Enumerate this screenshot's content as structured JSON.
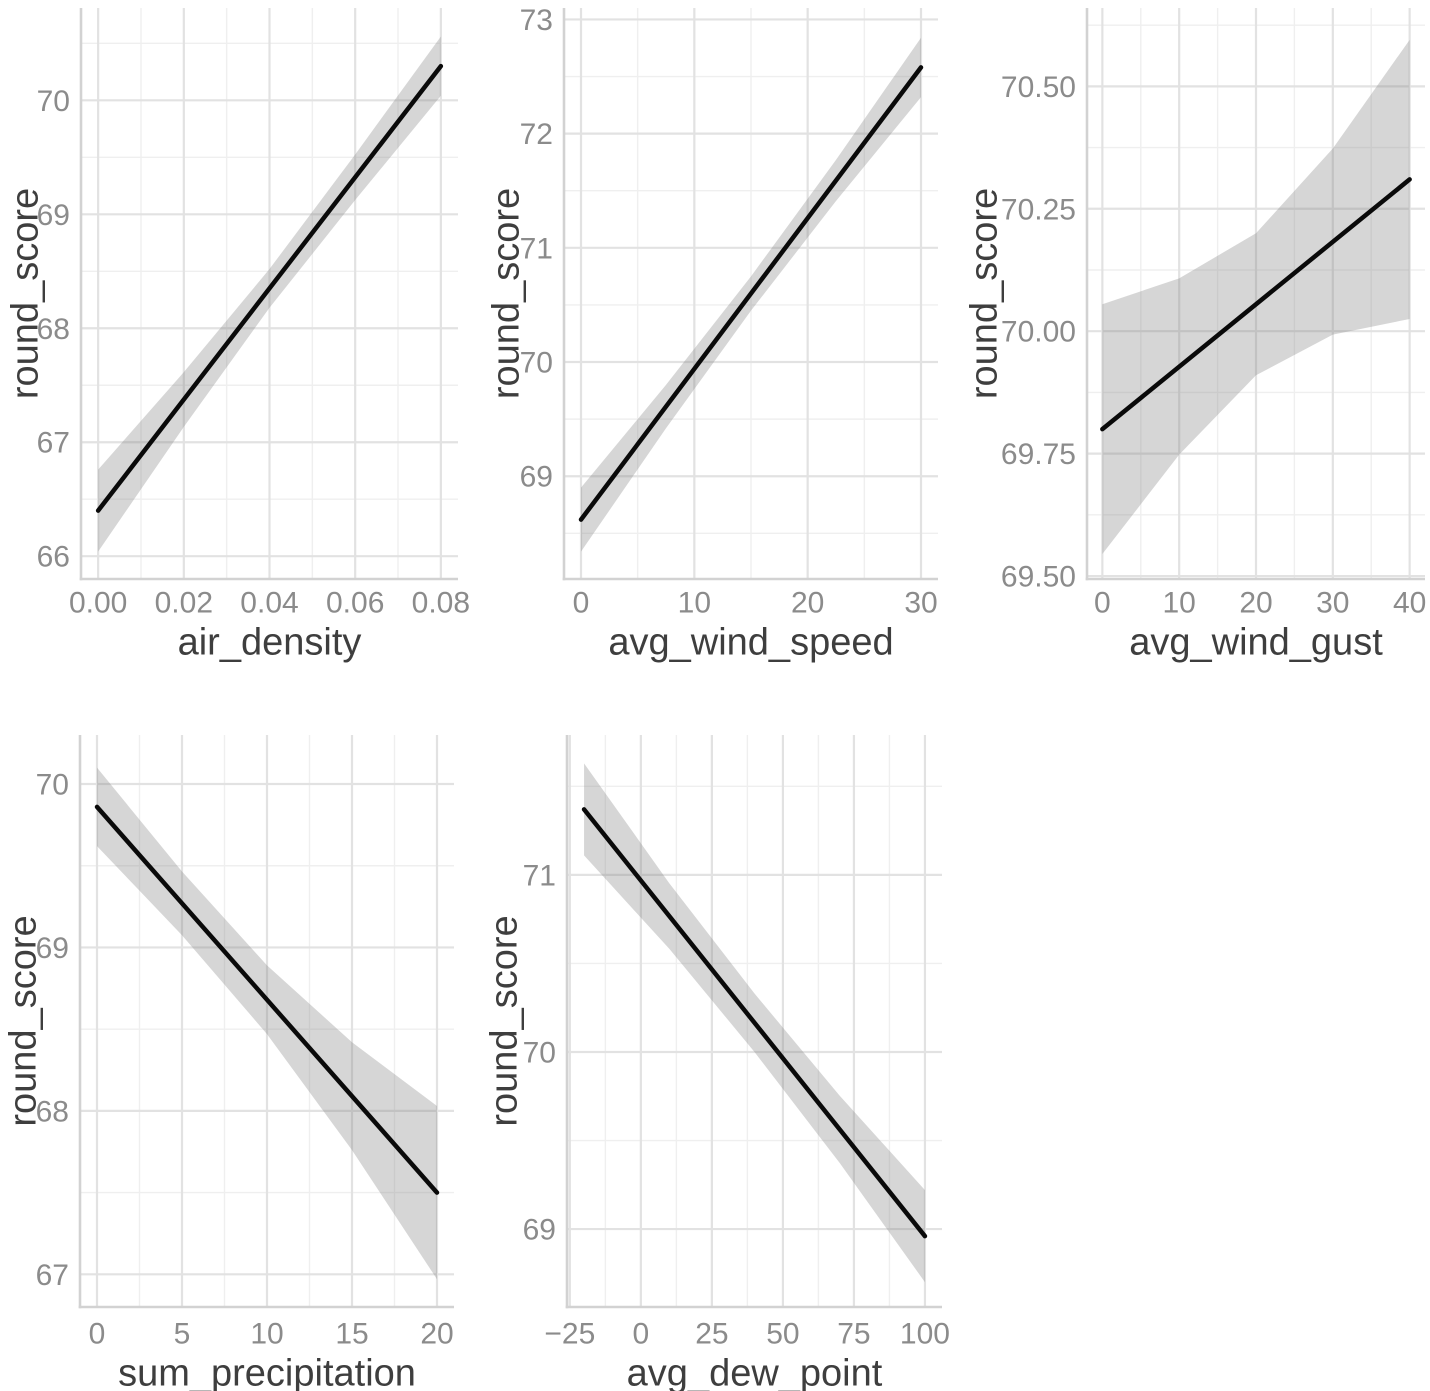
{
  "figure": {
    "description": "Grid of five linear-fit plots with confidence ribbons: round_score vs weather variables",
    "background": "#ffffff"
  },
  "style": {
    "fit_line_color": "#0a0a0a",
    "ribbon_color_rgba": "rgba(130,130,130,0.33)",
    "grid_major_color": "#e2e2e2",
    "grid_minor_color": "#efefef",
    "axis_line_color": "#d2d2d2",
    "tick_text_color": "#8b8b8b",
    "axis_title_color": "#3e3e3e"
  },
  "chart_data": [
    {
      "type": "line",
      "name": "air-density",
      "title": "",
      "xlabel": "air_density",
      "ylabel": "round_score",
      "grid": true,
      "legend": false,
      "x_domain": [
        -0.004,
        0.084
      ],
      "y_domain": [
        65.8,
        70.81
      ],
      "x_ticks": {
        "values": [
          0.0,
          0.02,
          0.04,
          0.06,
          0.08
        ],
        "labels": [
          "0.00",
          "0.02",
          "0.04",
          "0.06",
          "0.08"
        ]
      },
      "x_minor": [
        0.01,
        0.03,
        0.05,
        0.07
      ],
      "y_ticks": {
        "values": [
          66,
          67,
          68,
          69,
          70
        ],
        "labels": [
          "66",
          "67",
          "68",
          "69",
          "70"
        ]
      },
      "y_minor": [
        66.5,
        67.5,
        68.5,
        69.5,
        70.5
      ],
      "fit_line": {
        "x": [
          0.0,
          0.08
        ],
        "y": [
          66.4,
          70.3
        ]
      },
      "ribbon": {
        "x": [
          0.0,
          0.02,
          0.04,
          0.06,
          0.08
        ],
        "lower": [
          66.04,
          67.135,
          68.18,
          69.125,
          70.04
        ],
        "upper": [
          66.76,
          67.615,
          68.52,
          69.525,
          70.56
        ]
      }
    },
    {
      "type": "line",
      "name": "avg-wind-speed",
      "title": "",
      "xlabel": "avg_wind_speed",
      "ylabel": "round_score",
      "grid": true,
      "legend": false,
      "x_domain": [
        -1.5,
        31.5
      ],
      "y_domain": [
        68.1,
        73.1
      ],
      "x_ticks": {
        "values": [
          0,
          10,
          20,
          30
        ],
        "labels": [
          "0",
          "10",
          "20",
          "30"
        ]
      },
      "x_minor": [
        5,
        15,
        25
      ],
      "y_ticks": {
        "values": [
          69,
          70,
          71,
          72,
          73
        ],
        "labels": [
          "69",
          "70",
          "71",
          "72",
          "73"
        ]
      },
      "y_minor": [
        68.5,
        69.5,
        70.5,
        71.5,
        72.5
      ],
      "fit_line": {
        "x": [
          0,
          30
        ],
        "y": [
          68.62,
          72.58
        ]
      },
      "ribbon": {
        "x": [
          0,
          7.5,
          15,
          22.5,
          30
        ],
        "lower": [
          68.34,
          69.42,
          70.45,
          71.41,
          72.32
        ],
        "upper": [
          68.9,
          69.8,
          70.75,
          71.77,
          72.84
        ]
      }
    },
    {
      "type": "line",
      "name": "avg-wind-gust",
      "title": "",
      "xlabel": "avg_wind_gust",
      "ylabel": "round_score",
      "grid": true,
      "legend": false,
      "x_domain": [
        -2,
        42
      ],
      "y_domain": [
        69.494,
        70.66
      ],
      "x_ticks": {
        "values": [
          0,
          10,
          20,
          30,
          40
        ],
        "labels": [
          "0",
          "10",
          "20",
          "30",
          "40"
        ]
      },
      "x_minor": [
        5,
        15,
        25,
        35
      ],
      "y_ticks": {
        "values": [
          69.5,
          69.75,
          70.0,
          70.25,
          70.5
        ],
        "labels": [
          "69.50",
          "69.75",
          "70.00",
          "70.25",
          "70.50"
        ]
      },
      "y_minor": [
        69.625,
        69.875,
        70.125,
        70.375,
        70.625
      ],
      "fit_line": {
        "x": [
          0,
          40
        ],
        "y": [
          69.8,
          70.31
        ]
      },
      "ribbon": {
        "x": [
          0,
          10,
          20,
          30,
          40
        ],
        "lower": [
          69.545,
          69.748,
          69.91,
          69.993,
          70.025
        ],
        "upper": [
          70.055,
          70.108,
          70.2,
          70.373,
          70.595
        ]
      }
    },
    {
      "type": "line",
      "name": "sum-precipitation",
      "title": "",
      "xlabel": "sum_precipitation",
      "ylabel": "round_score",
      "grid": true,
      "legend": false,
      "x_domain": [
        -1,
        21
      ],
      "y_domain": [
        66.8,
        70.3
      ],
      "x_ticks": {
        "values": [
          0,
          5,
          10,
          15,
          20
        ],
        "labels": [
          "0",
          "5",
          "10",
          "15",
          "20"
        ]
      },
      "x_minor": [
        2.5,
        7.5,
        12.5,
        17.5
      ],
      "y_ticks": {
        "values": [
          67,
          68,
          69,
          70
        ],
        "labels": [
          "67",
          "68",
          "69",
          "70"
        ]
      },
      "y_minor": [
        67.5,
        68.5,
        69.5
      ],
      "fit_line": {
        "x": [
          0,
          20
        ],
        "y": [
          69.86,
          67.5
        ]
      },
      "ribbon": {
        "x": [
          0,
          5,
          10,
          15,
          20
        ],
        "lower": [
          69.62,
          69.075,
          68.47,
          67.76,
          66.97
        ],
        "upper": [
          70.1,
          69.465,
          68.89,
          68.42,
          68.03
        ]
      }
    },
    {
      "type": "line",
      "name": "avg-dew-point",
      "title": "",
      "xlabel": "avg_dew_point",
      "ylabel": "round_score",
      "grid": true,
      "legend": false,
      "x_domain": [
        -26,
        106
      ],
      "y_domain": [
        68.56,
        71.79
      ],
      "x_ticks": {
        "values": [
          -25,
          0,
          25,
          50,
          75,
          100
        ],
        "labels": [
          "−25",
          "0",
          "25",
          "50",
          "75",
          "100"
        ]
      },
      "x_minor": [
        -12.5,
        12.5,
        37.5,
        62.5,
        87.5
      ],
      "y_ticks": {
        "values": [
          69,
          70,
          71
        ],
        "labels": [
          "69",
          "70",
          "71"
        ]
      },
      "y_minor": [
        69.5,
        70.5,
        71.5
      ],
      "fit_line": {
        "x": [
          -20,
          100
        ],
        "y": [
          71.37,
          68.96
        ]
      },
      "ribbon": {
        "x": [
          -20,
          10,
          40,
          70,
          100
        ],
        "lower": [
          71.11,
          70.583,
          70.0,
          69.373,
          68.7
        ],
        "upper": [
          71.63,
          70.953,
          70.33,
          69.753,
          69.22
        ]
      }
    }
  ]
}
